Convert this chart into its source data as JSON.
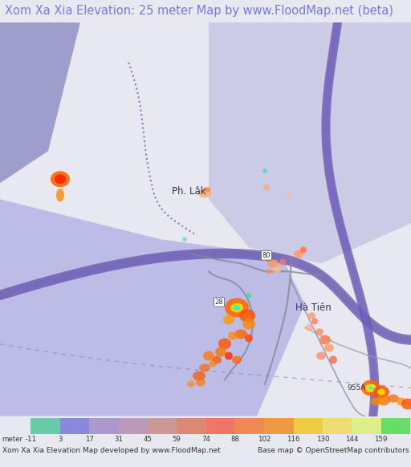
{
  "title": "Xom Xa Xia Elevation: 25 meter Map by www.FloodMap.net (beta)",
  "title_color": "#7777ee",
  "title_fontsize": 10.5,
  "bg_color": "#e8e8f0",
  "map_bg_color": "#7777cc",
  "colorbar_values": [
    "-11",
    "3",
    "17",
    "31",
    "45",
    "59",
    "74",
    "88",
    "102",
    "116",
    "130",
    "144",
    "159"
  ],
  "colorbar_colors": [
    "#66ccaa",
    "#8888dd",
    "#aa99cc",
    "#bb99bb",
    "#cc9999",
    "#dd8877",
    "#ee7766",
    "#ee8855",
    "#ee9944",
    "#eecc44",
    "#eedd77",
    "#ddee88",
    "#66dd66"
  ],
  "footer_left": "Xom Xa Xia Elevation Map developed by www.FloodMap.net",
  "footer_right": "Base map © OpenStreetMap contributors",
  "footer_fontsize": 6.5,
  "legend_label": "meter"
}
